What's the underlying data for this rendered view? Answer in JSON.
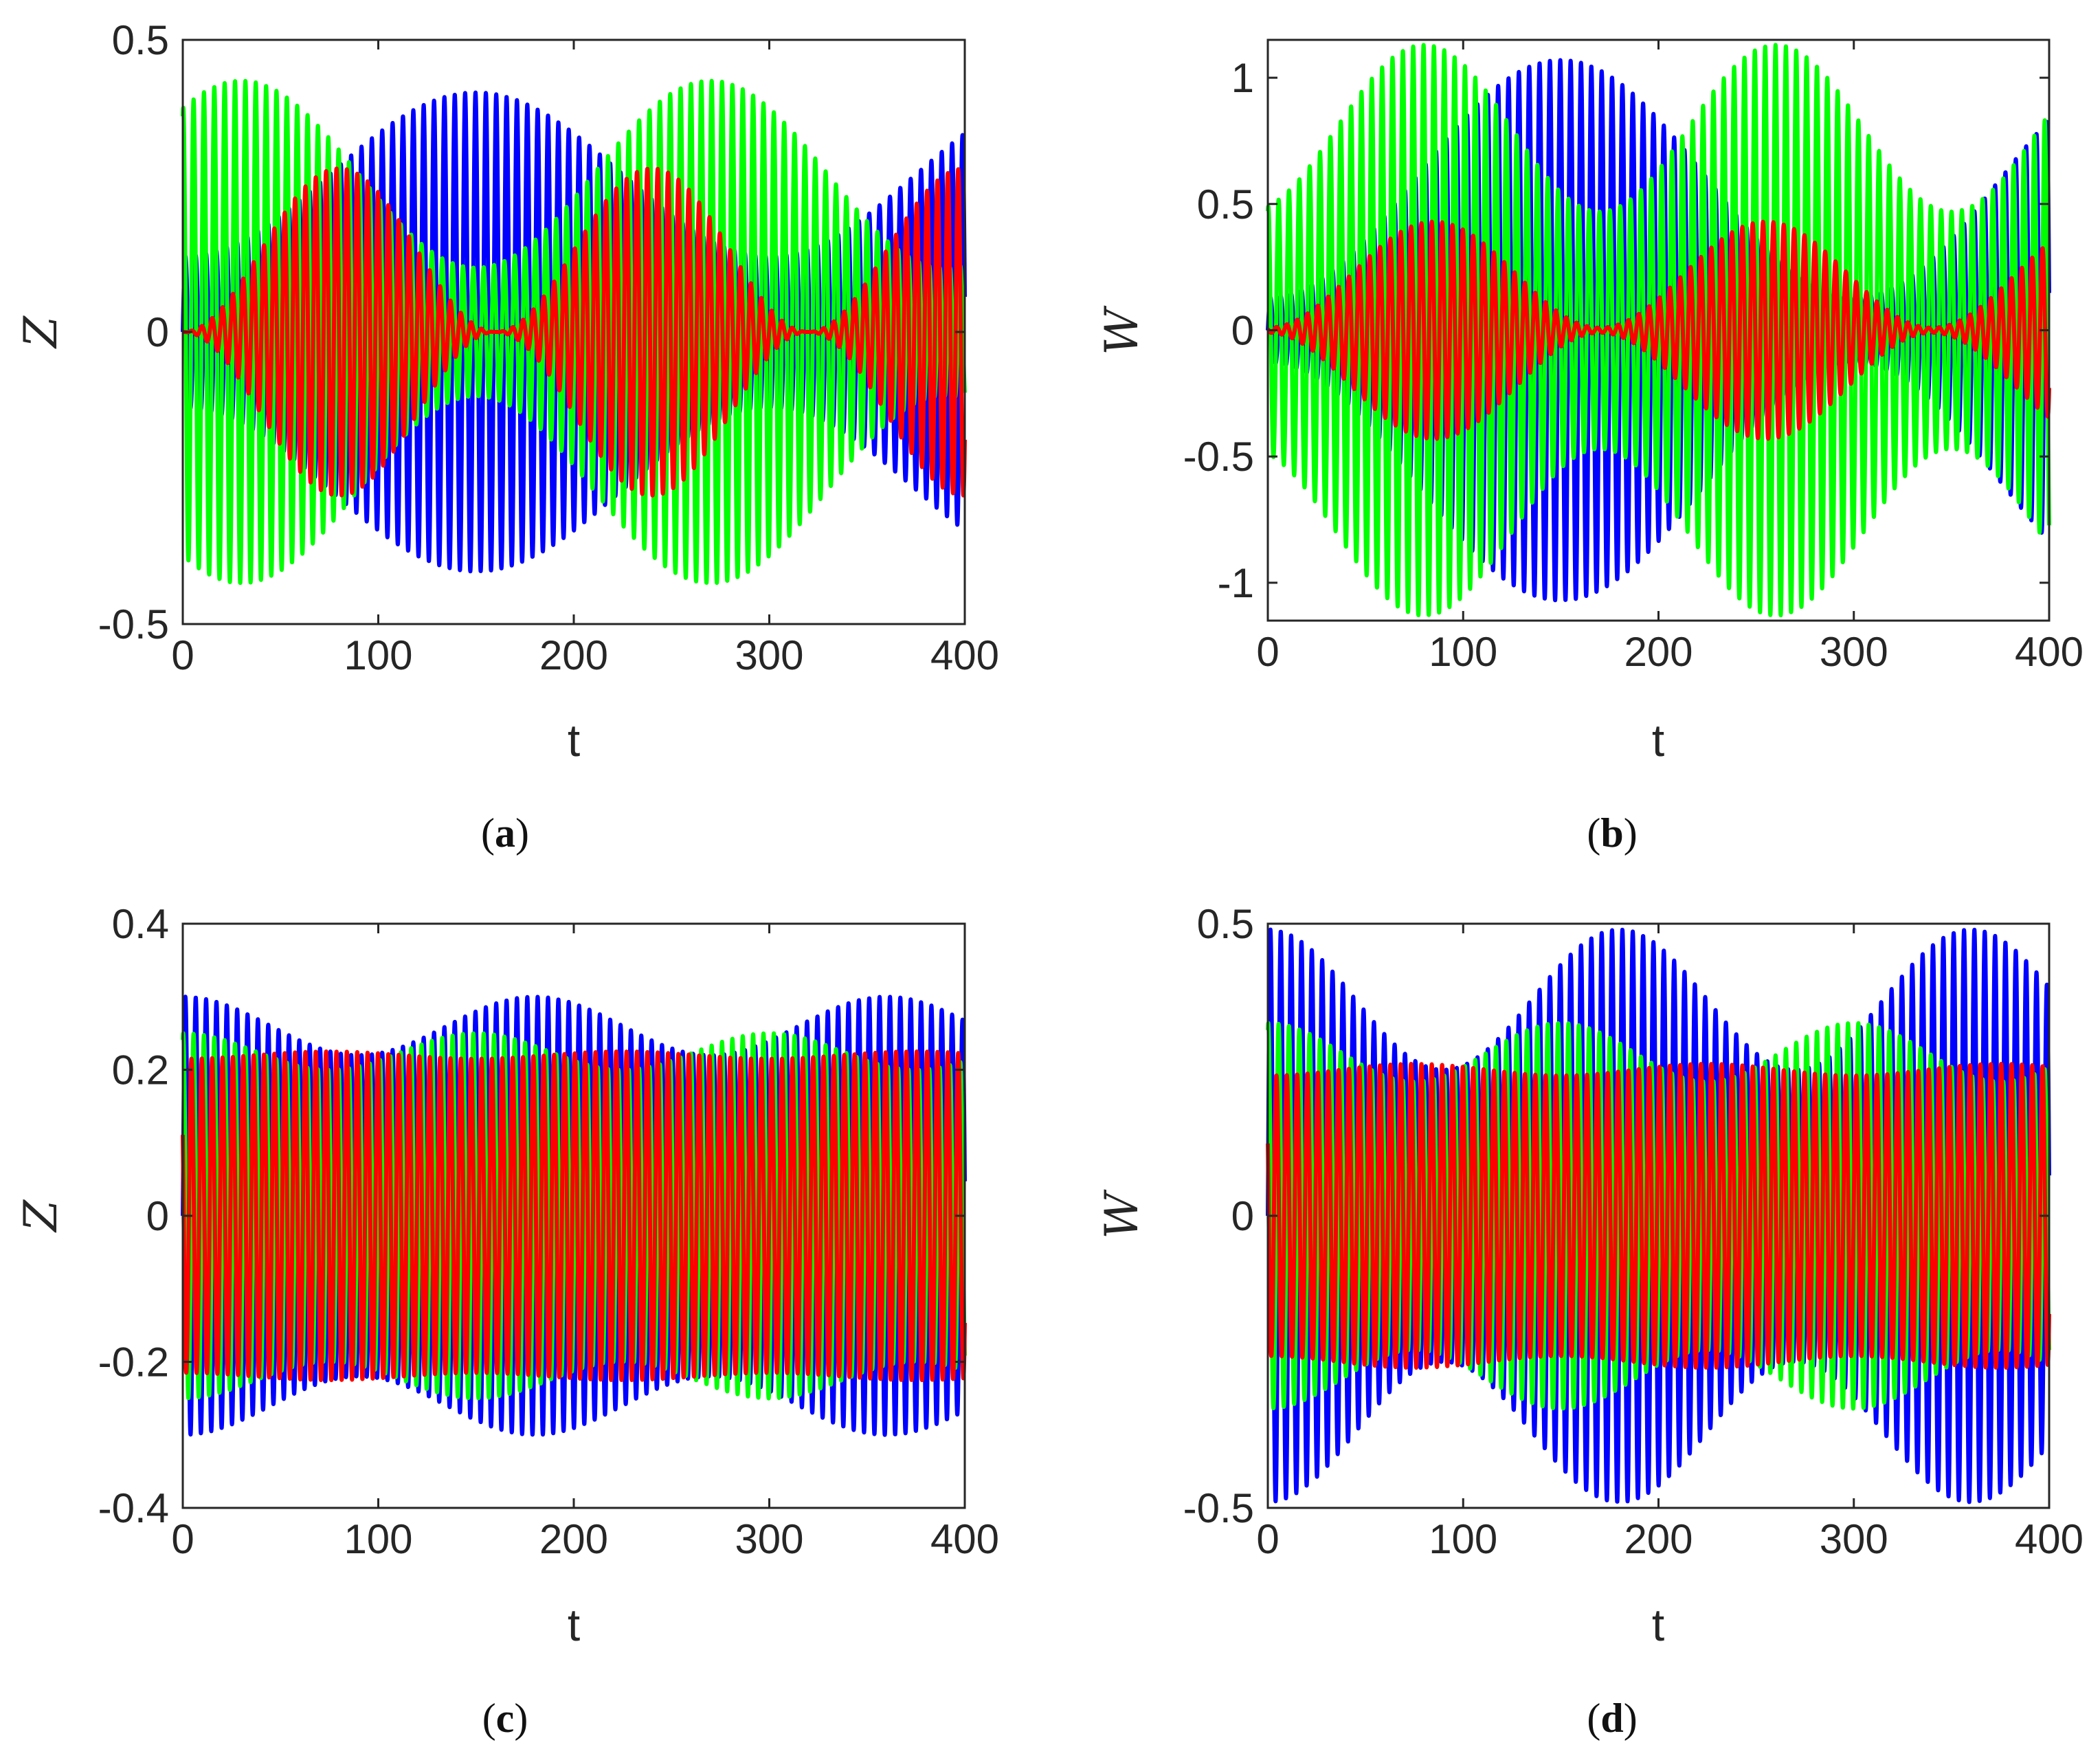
{
  "chart_data": [
    {
      "panel": "a",
      "caption": {
        "open": "(",
        "letter": "a",
        "close": ")"
      },
      "type": "line",
      "xlabel": "t",
      "ylabel": "Z",
      "xlim": [
        0,
        400
      ],
      "ylim": [
        -0.5,
        0.5
      ],
      "xticks": [
        0,
        100,
        200,
        300,
        400
      ],
      "xtick_labels": [
        "0",
        "100",
        "200",
        "300",
        "400"
      ],
      "yticks": [
        -0.5,
        0,
        0.5
      ],
      "ytick_labels": [
        "-0.5",
        "0",
        "0.5"
      ],
      "carrier_period": 5.3,
      "series": [
        {
          "name": "blue",
          "color": "#0000ff",
          "envelope": {
            "mean": 0.27,
            "amp": 0.14,
            "period": 300,
            "peak_t": 150
          }
        },
        {
          "name": "green",
          "color": "#00ff00",
          "envelope": {
            "mean": 0.27,
            "amp": 0.16,
            "period": 240,
            "peak_t": 270
          }
        },
        {
          "name": "red",
          "color": "#ff0000",
          "envelope": {
            "mean": 0.14,
            "amp": 0.14,
            "period": 160,
            "peak_t": 80
          }
        }
      ]
    },
    {
      "panel": "b",
      "caption": {
        "open": "(",
        "letter": "b",
        "close": ")"
      },
      "type": "line",
      "xlabel": "t",
      "ylabel": "W",
      "xlim": [
        0,
        400
      ],
      "ylim": [
        -1.15,
        1.15
      ],
      "xticks": [
        0,
        100,
        200,
        300,
        400
      ],
      "xtick_labels": [
        "0",
        "100",
        "200",
        "300",
        "400"
      ],
      "yticks": [
        -1,
        -0.5,
        0,
        0.5,
        1
      ],
      "ytick_labels": [
        "-1",
        "-0.5",
        "0",
        "0.5",
        "1"
      ],
      "carrier_period": 5.3,
      "series": [
        {
          "name": "blue",
          "color": "#0000ff",
          "envelope": {
            "mean": 0.6,
            "amp": 0.47,
            "period": 300,
            "peak_t": 150
          }
        },
        {
          "name": "green",
          "color": "#00ff00",
          "envelope": {
            "mean": 0.8,
            "amp": 0.33,
            "period": 180,
            "peak_t": 260
          }
        },
        {
          "name": "red",
          "color": "#ff0000",
          "envelope": {
            "mean": 0.22,
            "amp": 0.21,
            "period": 170,
            "peak_t": 85
          }
        }
      ]
    },
    {
      "panel": "c",
      "caption": {
        "open": "(",
        "letter": "c",
        "close": ")"
      },
      "type": "line",
      "xlabel": "t",
      "ylabel": "Z",
      "xlim": [
        0,
        400
      ],
      "ylim": [
        -0.4,
        0.4
      ],
      "xticks": [
        0,
        100,
        200,
        300,
        400
      ],
      "xtick_labels": [
        "0",
        "100",
        "200",
        "300",
        "400"
      ],
      "yticks": [
        -0.4,
        -0.2,
        0,
        0.2,
        0.4
      ],
      "ytick_labels": [
        "-0.4",
        "-0.2",
        "0",
        "0.2",
        "0.4"
      ],
      "carrier_period": 5.3,
      "series": [
        {
          "name": "blue",
          "color": "#0000ff",
          "envelope": {
            "mean": 0.26,
            "amp": 0.04,
            "period": 180,
            "peak_t": 0
          }
        },
        {
          "name": "green",
          "color": "#00ff00",
          "envelope": {
            "mean": 0.225,
            "amp": 0.025,
            "period": 150,
            "peak_t": 0
          }
        },
        {
          "name": "red",
          "color": "#ff0000",
          "envelope": {
            "mean": 0.22,
            "amp": 0.005,
            "period": 150,
            "peak_t": 75
          }
        }
      ]
    },
    {
      "panel": "d",
      "caption": {
        "open": "(",
        "letter": "d",
        "close": ")"
      },
      "type": "line",
      "xlabel": "t",
      "ylabel": "W",
      "xlim": [
        0,
        400
      ],
      "ylim": [
        -0.5,
        0.5
      ],
      "xticks": [
        0,
        100,
        200,
        300,
        400
      ],
      "xtick_labels": [
        "0",
        "100",
        "200",
        "300",
        "400"
      ],
      "yticks": [
        -0.5,
        0,
        0.5
      ],
      "ytick_labels": [
        "-0.5",
        "0",
        "0.5"
      ],
      "carrier_period": 5.3,
      "series": [
        {
          "name": "blue",
          "color": "#0000ff",
          "envelope": {
            "mean": 0.37,
            "amp": 0.12,
            "period": 180,
            "peak_t": 0
          }
        },
        {
          "name": "green",
          "color": "#00ff00",
          "envelope": {
            "mean": 0.28,
            "amp": 0.05,
            "period": 150,
            "peak_t": 0
          }
        },
        {
          "name": "red",
          "color": "#ff0000",
          "envelope": {
            "mean": 0.25,
            "amp": 0.01,
            "period": 150,
            "peak_t": 75
          }
        }
      ]
    }
  ]
}
